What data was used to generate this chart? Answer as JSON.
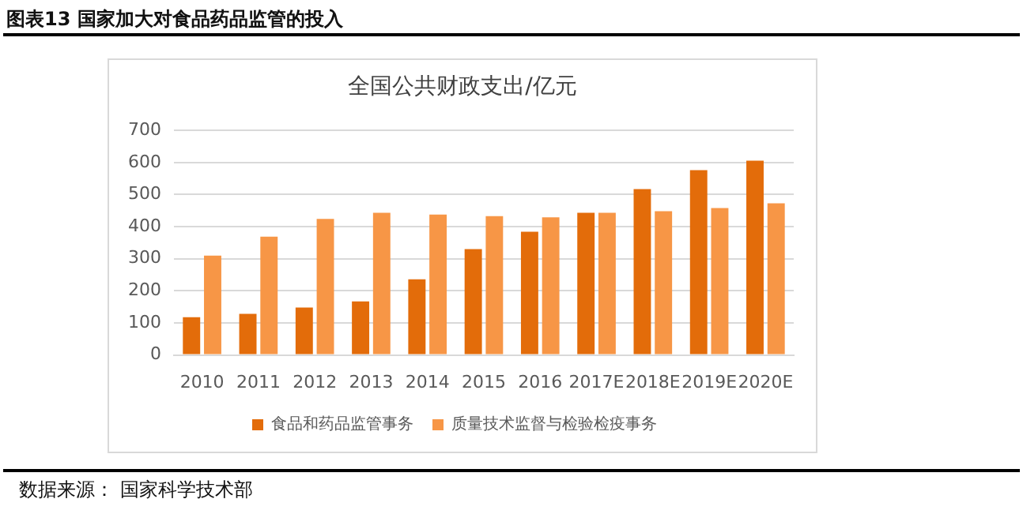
{
  "chart_data": {
    "type": "bar",
    "title": "图表13 国家加大对食品药品监管的投入",
    "subtitle": "全国公共财政支出/亿元",
    "categories": [
      "2010",
      "2011",
      "2012",
      "2013",
      "2014",
      "2015",
      "2016",
      "2017E",
      "2018E",
      "2019E",
      "2020E"
    ],
    "series": [
      {
        "name": "食品和药品监管事务",
        "color": "#e36c0a",
        "values": [
          118,
          128,
          148,
          167,
          236,
          330,
          384,
          443,
          517,
          576,
          606
        ]
      },
      {
        "name": "质量技术监督与检验检疫事务",
        "color": "#f79646",
        "values": [
          310,
          369,
          424,
          443,
          438,
          433,
          429,
          443,
          448,
          458,
          473
        ]
      }
    ],
    "ylim": [
      0,
      700
    ],
    "yticks": [
      0,
      100,
      200,
      300,
      400,
      500,
      600,
      700
    ],
    "grid": "y",
    "legend": "bottom",
    "annotations": [
      "数据来源： 国家科学技术部"
    ]
  }
}
